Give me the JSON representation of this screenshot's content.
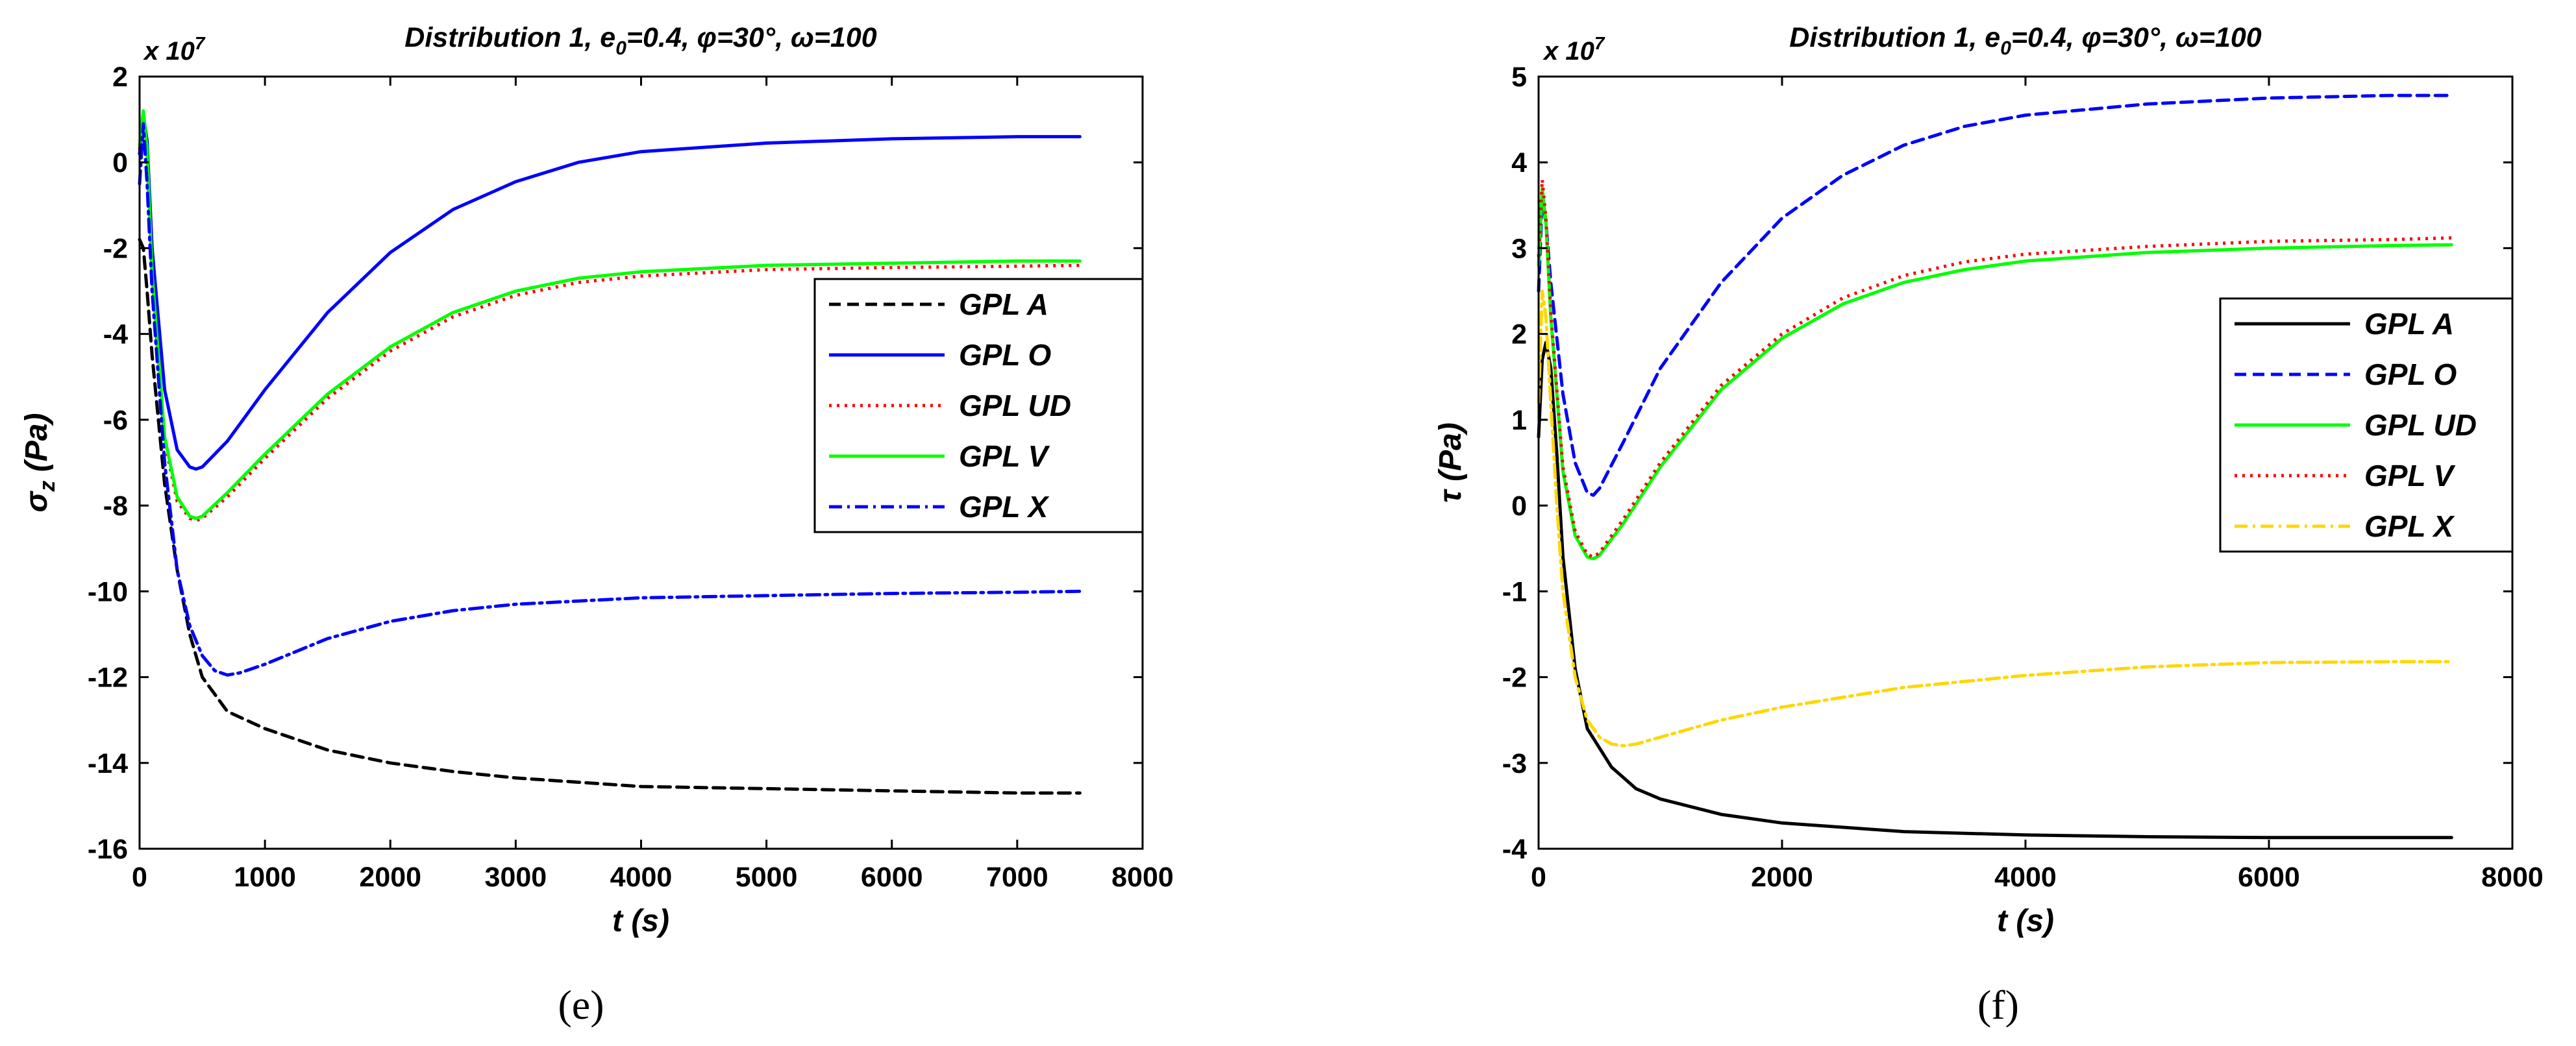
{
  "chart_data": [
    {
      "type": "line",
      "panel": "e",
      "title": "Distribution 1, e0=0.4, φ=30°, ω=100",
      "xlabel": "t (s)",
      "ylabel": "σz (Pa)",
      "y_multiplier": "x 10^7",
      "xlim": [
        0,
        8000
      ],
      "ylim": [
        -16,
        2
      ],
      "xticks": [
        0,
        1000,
        2000,
        3000,
        4000,
        5000,
        6000,
        7000,
        8000
      ],
      "yticks": [
        -16,
        -14,
        -12,
        -10,
        -8,
        -6,
        -4,
        -2,
        0,
        2
      ],
      "legend_position": "right-middle",
      "series": [
        {
          "name": "GPL A",
          "color": "#000000",
          "dash": "dashed",
          "x": [
            0,
            30,
            60,
            100,
            200,
            300,
            400,
            500,
            700,
            1000,
            1500,
            2000,
            2500,
            3000,
            3500,
            4000,
            5000,
            6000,
            7000,
            7500
          ],
          "y": [
            -1.8,
            -2.0,
            -3.0,
            -4.5,
            -7.5,
            -9.5,
            -11.0,
            -12.0,
            -12.8,
            -13.2,
            -13.7,
            -14.0,
            -14.2,
            -14.35,
            -14.45,
            -14.55,
            -14.6,
            -14.65,
            -14.7,
            -14.7
          ]
        },
        {
          "name": "GPL O",
          "color": "#0000ff",
          "dash": "solid",
          "x": [
            0,
            30,
            60,
            100,
            200,
            300,
            400,
            450,
            500,
            700,
            1000,
            1500,
            2000,
            2500,
            3000,
            3500,
            4000,
            5000,
            6000,
            7000,
            7500
          ],
          "y": [
            0.2,
            1.1,
            0.5,
            -2.0,
            -5.3,
            -6.7,
            -7.1,
            -7.15,
            -7.1,
            -6.5,
            -5.3,
            -3.5,
            -2.1,
            -1.1,
            -0.45,
            0.0,
            0.25,
            0.45,
            0.55,
            0.6,
            0.6
          ]
        },
        {
          "name": "GPL UD",
          "color": "#ff0000",
          "dash": "dotted",
          "x": [
            0,
            30,
            60,
            100,
            200,
            300,
            400,
            450,
            500,
            700,
            1000,
            1500,
            2000,
            2500,
            3000,
            3500,
            4000,
            5000,
            6000,
            7000,
            7500
          ],
          "y": [
            0.3,
            1.1,
            0.2,
            -2.7,
            -6.5,
            -7.9,
            -8.3,
            -8.35,
            -8.3,
            -7.8,
            -6.9,
            -5.5,
            -4.4,
            -3.6,
            -3.1,
            -2.8,
            -2.65,
            -2.5,
            -2.45,
            -2.42,
            -2.4
          ]
        },
        {
          "name": "GPL V",
          "color": "#00ff00",
          "dash": "solid",
          "x": [
            0,
            30,
            60,
            100,
            200,
            300,
            400,
            450,
            500,
            700,
            1000,
            1500,
            2000,
            2500,
            3000,
            3500,
            4000,
            5000,
            6000,
            7000,
            7500
          ],
          "y": [
            0.4,
            1.2,
            0.3,
            -2.6,
            -6.4,
            -7.8,
            -8.25,
            -8.3,
            -8.25,
            -7.7,
            -6.8,
            -5.4,
            -4.3,
            -3.5,
            -3.0,
            -2.7,
            -2.55,
            -2.4,
            -2.35,
            -2.3,
            -2.3
          ]
        },
        {
          "name": "GPL X",
          "color": "#0000ff",
          "dash": "dashdot",
          "x": [
            0,
            30,
            60,
            100,
            200,
            300,
            400,
            500,
            600,
            700,
            800,
            1000,
            1500,
            2000,
            2500,
            3000,
            4000,
            5000,
            6000,
            7000,
            7500
          ],
          "y": [
            -0.5,
            0.9,
            -0.5,
            -3.0,
            -7.0,
            -9.5,
            -10.8,
            -11.5,
            -11.85,
            -11.95,
            -11.9,
            -11.7,
            -11.1,
            -10.7,
            -10.45,
            -10.3,
            -10.15,
            -10.1,
            -10.05,
            -10.02,
            -10.0
          ]
        }
      ]
    },
    {
      "type": "line",
      "panel": "f",
      "title": "Distribution 1, e0=0.4, φ=30°, ω=100",
      "xlabel": "t (s)",
      "ylabel": "τ (Pa)",
      "y_multiplier": "x 10^7",
      "xlim": [
        0,
        8000
      ],
      "ylim": [
        -4,
        5
      ],
      "xticks": [
        0,
        2000,
        4000,
        6000,
        8000
      ],
      "yticks": [
        -4,
        -3,
        -2,
        -1,
        0,
        1,
        2,
        3,
        4,
        5
      ],
      "legend_position": "right-middle",
      "series": [
        {
          "name": "GPL A",
          "color": "#000000",
          "dash": "solid",
          "x": [
            0,
            30,
            60,
            100,
            150,
            200,
            300,
            400,
            600,
            800,
            1000,
            1500,
            2000,
            3000,
            4000,
            5000,
            6000,
            7000,
            7500
          ],
          "y": [
            0.8,
            1.7,
            1.9,
            1.6,
            0.6,
            -0.6,
            -1.9,
            -2.6,
            -3.05,
            -3.3,
            -3.42,
            -3.6,
            -3.7,
            -3.8,
            -3.84,
            -3.86,
            -3.87,
            -3.87,
            -3.87
          ]
        },
        {
          "name": "GPL O",
          "color": "#0000ff",
          "dash": "dashed",
          "x": [
            0,
            30,
            60,
            100,
            200,
            300,
            400,
            450,
            500,
            700,
            1000,
            1500,
            2000,
            2500,
            3000,
            3500,
            4000,
            5000,
            6000,
            7000,
            7500
          ],
          "y": [
            2.5,
            3.6,
            3.3,
            2.6,
            1.3,
            0.5,
            0.15,
            0.12,
            0.2,
            0.75,
            1.6,
            2.6,
            3.35,
            3.85,
            4.2,
            4.42,
            4.55,
            4.68,
            4.75,
            4.78,
            4.78
          ]
        },
        {
          "name": "GPL UD",
          "color": "#00ff00",
          "dash": "solid",
          "x": [
            0,
            30,
            60,
            100,
            200,
            300,
            400,
            450,
            500,
            700,
            1000,
            1500,
            2000,
            2500,
            3000,
            3500,
            4000,
            5000,
            6000,
            7000,
            7500
          ],
          "y": [
            2.8,
            3.7,
            3.3,
            2.2,
            0.4,
            -0.35,
            -0.6,
            -0.62,
            -0.58,
            -0.2,
            0.45,
            1.35,
            1.95,
            2.35,
            2.6,
            2.75,
            2.85,
            2.95,
            3.0,
            3.03,
            3.04
          ]
        },
        {
          "name": "GPL V",
          "color": "#ff0000",
          "dash": "dotted",
          "x": [
            0,
            30,
            60,
            100,
            200,
            300,
            400,
            450,
            500,
            700,
            1000,
            1500,
            2000,
            2500,
            3000,
            3500,
            4000,
            5000,
            6000,
            7000,
            7500
          ],
          "y": [
            2.9,
            3.8,
            3.35,
            2.25,
            0.45,
            -0.3,
            -0.57,
            -0.6,
            -0.55,
            -0.15,
            0.5,
            1.4,
            2.0,
            2.42,
            2.68,
            2.84,
            2.93,
            3.02,
            3.08,
            3.1,
            3.12
          ]
        },
        {
          "name": "GPL X",
          "color": "#ffd700",
          "dash": "dashdot",
          "x": [
            0,
            30,
            60,
            100,
            150,
            200,
            300,
            400,
            500,
            600,
            700,
            800,
            1000,
            1500,
            2000,
            3000,
            4000,
            5000,
            6000,
            7000,
            7500
          ],
          "y": [
            1.2,
            2.5,
            2.2,
            1.2,
            0.0,
            -1.0,
            -2.0,
            -2.5,
            -2.7,
            -2.78,
            -2.8,
            -2.78,
            -2.7,
            -2.5,
            -2.35,
            -2.12,
            -1.98,
            -1.88,
            -1.83,
            -1.82,
            -1.82
          ]
        }
      ]
    }
  ],
  "captions": [
    "(e)",
    "(f)"
  ]
}
